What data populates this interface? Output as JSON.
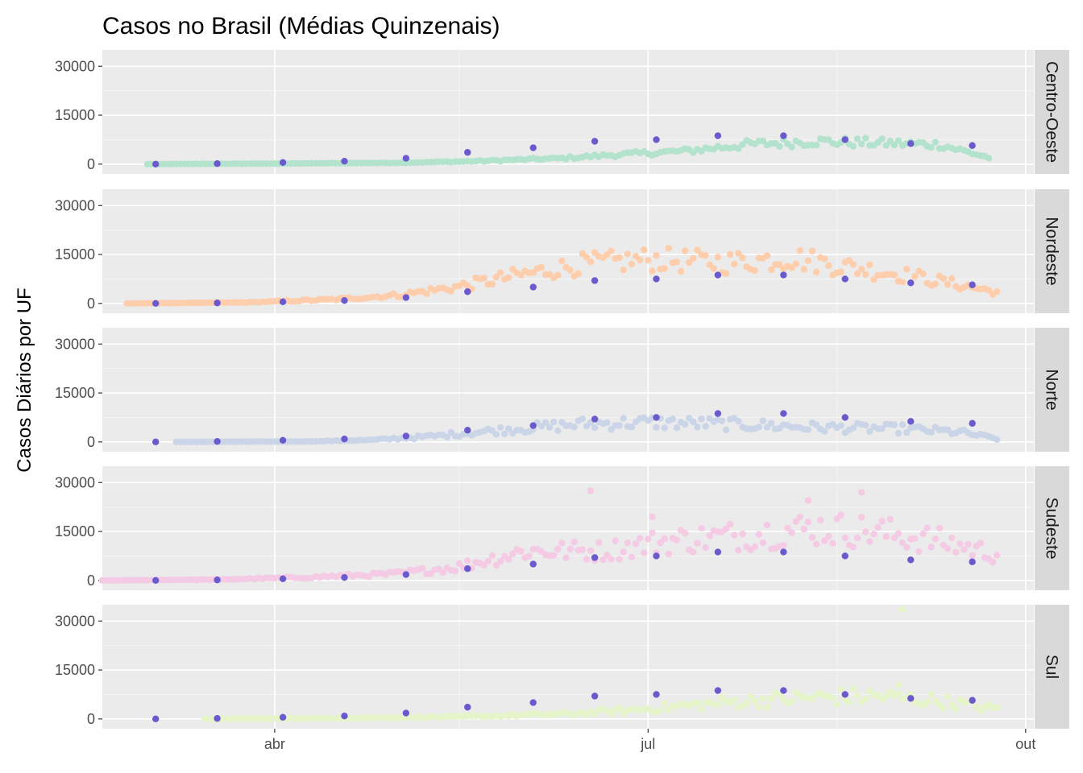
{
  "chart_data": {
    "type": "scatter",
    "title": "Casos no Brasil (Médias Quinzenais)",
    "xlabel": "",
    "ylabel": "Casos Diários por UF",
    "x_axis": {
      "type": "date",
      "range": [
        "2020-02-19",
        "2020-10-03"
      ],
      "ticks": [
        {
          "label": "abr",
          "date": "2020-04-01"
        },
        {
          "label": "jul",
          "date": "2020-07-01"
        },
        {
          "label": "out",
          "date": "2020-10-01"
        }
      ]
    },
    "y_axis": {
      "range": [
        -3000,
        35000
      ],
      "ticks": [
        0,
        15000,
        30000
      ]
    },
    "grid": true,
    "legend": "none",
    "average_color": "#6a5acd",
    "average_dates": [
      "2020-03-03",
      "2020-03-18",
      "2020-04-03",
      "2020-04-18",
      "2020-05-03",
      "2020-05-18",
      "2020-06-03",
      "2020-06-18",
      "2020-07-03",
      "2020-07-18",
      "2020-08-03",
      "2020-08-18",
      "2020-09-03",
      "2020-09-18"
    ],
    "average_values": [
      0,
      150,
      500,
      900,
      1800,
      3600,
      5000,
      7000,
      7500,
      8700,
      8700,
      7500,
      6300,
      5700
    ],
    "panels": [
      {
        "name": "Centro-Oeste",
        "color": "#b3e2cd",
        "start": "2020-03-01",
        "end": "2020-09-22",
        "anchors": [
          [
            "2020-03-01",
            0
          ],
          [
            "2020-04-01",
            150
          ],
          [
            "2020-05-01",
            400
          ],
          [
            "2020-05-20",
            900
          ],
          [
            "2020-06-10",
            1800
          ],
          [
            "2020-06-25",
            3000
          ],
          [
            "2020-07-10",
            4000
          ],
          [
            "2020-07-25",
            6000
          ],
          [
            "2020-08-10",
            7000
          ],
          [
            "2020-08-25",
            6500
          ],
          [
            "2020-09-10",
            6000
          ],
          [
            "2020-09-22",
            2000
          ]
        ],
        "noise": 0.22
      },
      {
        "name": "Nordeste",
        "color": "#fdcdac",
        "start": "2020-02-25",
        "end": "2020-09-24",
        "anchors": [
          [
            "2020-02-25",
            0
          ],
          [
            "2020-03-25",
            300
          ],
          [
            "2020-04-15",
            1200
          ],
          [
            "2020-05-01",
            2500
          ],
          [
            "2020-05-15",
            5000
          ],
          [
            "2020-06-01",
            9000
          ],
          [
            "2020-06-15",
            12000
          ],
          [
            "2020-07-01",
            13500
          ],
          [
            "2020-07-20",
            12500
          ],
          [
            "2020-08-05",
            14000
          ],
          [
            "2020-08-20",
            11000
          ],
          [
            "2020-09-05",
            8000
          ],
          [
            "2020-09-24",
            3500
          ]
        ],
        "noise": 0.28
      },
      {
        "name": "Norte",
        "color": "#cbd5e8",
        "start": "2020-03-08",
        "end": "2020-09-24",
        "anchors": [
          [
            "2020-03-08",
            0
          ],
          [
            "2020-04-10",
            150
          ],
          [
            "2020-04-25",
            600
          ],
          [
            "2020-05-10",
            1800
          ],
          [
            "2020-05-25",
            3500
          ],
          [
            "2020-06-15",
            5500
          ],
          [
            "2020-07-01",
            6000
          ],
          [
            "2020-07-20",
            5500
          ],
          [
            "2020-08-10",
            4500
          ],
          [
            "2020-09-01",
            4000
          ],
          [
            "2020-09-15",
            3000
          ],
          [
            "2020-09-24",
            1000
          ]
        ],
        "noise": 0.35
      },
      {
        "name": "Sudeste",
        "color": "#f4cae4",
        "start": "2020-02-19",
        "end": "2020-09-24",
        "anchors": [
          [
            "2020-02-19",
            0
          ],
          [
            "2020-03-20",
            300
          ],
          [
            "2020-04-10",
            1000
          ],
          [
            "2020-04-30",
            2000
          ],
          [
            "2020-05-15",
            4000
          ],
          [
            "2020-06-01",
            9000
          ],
          [
            "2020-06-20",
            9000
          ],
          [
            "2020-07-05",
            12000
          ],
          [
            "2020-07-25",
            14000
          ],
          [
            "2020-08-10",
            16000
          ],
          [
            "2020-08-25",
            15000
          ],
          [
            "2020-09-10",
            12000
          ],
          [
            "2020-09-24",
            8000
          ]
        ],
        "noise": 0.35,
        "outliers": [
          [
            "2020-06-17",
            27500
          ],
          [
            "2020-08-22",
            27000
          ],
          [
            "2020-08-09",
            24500
          ],
          [
            "2020-07-02",
            19500
          ]
        ]
      },
      {
        "name": "Sul",
        "color": "#e6f5c9",
        "start": "2020-03-15",
        "end": "2020-09-24",
        "anchors": [
          [
            "2020-03-15",
            0
          ],
          [
            "2020-04-15",
            200
          ],
          [
            "2020-05-15",
            600
          ],
          [
            "2020-06-10",
            1500
          ],
          [
            "2020-06-25",
            2500
          ],
          [
            "2020-07-10",
            4000
          ],
          [
            "2020-07-25",
            5500
          ],
          [
            "2020-08-10",
            6500
          ],
          [
            "2020-08-25",
            7000
          ],
          [
            "2020-09-10",
            5500
          ],
          [
            "2020-09-24",
            3000
          ]
        ],
        "noise": 0.4,
        "outliers": [
          [
            "2020-09-01",
            33500
          ],
          [
            "2020-08-31",
            10500
          ]
        ]
      }
    ]
  }
}
